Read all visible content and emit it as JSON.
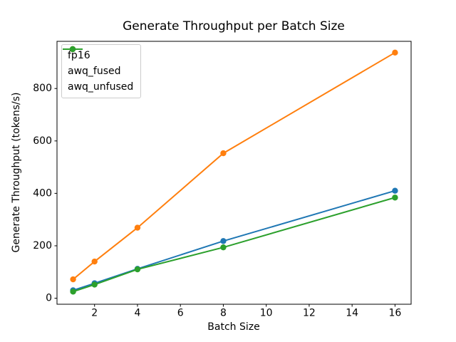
{
  "chart_data": {
    "type": "line",
    "title": "Generate Throughput per Batch Size",
    "xlabel": "Batch Size",
    "ylabel": "Generate Throughput (tokens/s)",
    "x": [
      1,
      2,
      4,
      8,
      16
    ],
    "series": [
      {
        "name": "fp16",
        "color": "#1f77b4",
        "values": [
          30,
          57,
          112,
          218,
          410
        ]
      },
      {
        "name": "awq_fused",
        "color": "#ff7f0e",
        "values": [
          72,
          140,
          269,
          553,
          937
        ]
      },
      {
        "name": "awq_unfused",
        "color": "#2ca02c",
        "values": [
          25,
          52,
          110,
          194,
          384
        ]
      }
    ],
    "xticks": [
      2,
      4,
      6,
      8,
      10,
      12,
      14,
      16
    ],
    "yticks": [
      0,
      200,
      400,
      600,
      800
    ],
    "xlim": [
      0.25,
      16.75
    ],
    "ylim": [
      -23,
      980
    ],
    "grid": false,
    "marker": "circle",
    "legend_position": "upper-left",
    "background": "#ffffff",
    "spine_color": "#000000"
  }
}
